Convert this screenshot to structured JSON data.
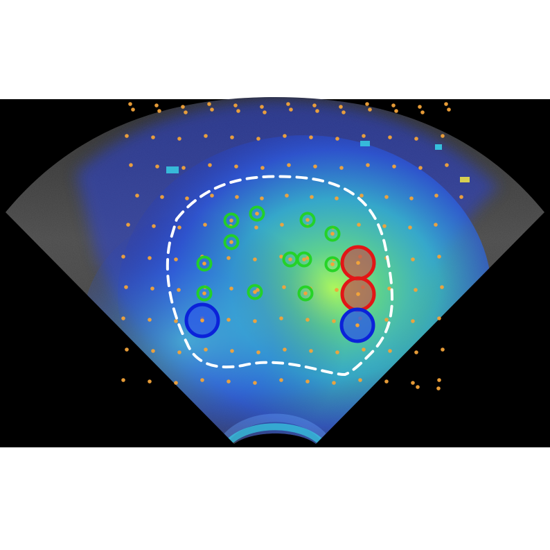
{
  "image": {
    "kind": "ultrasound-overlay",
    "colors": {
      "background": "#000000",
      "tissue_gray": "#4b4b4b",
      "heat_blue": "#2d3fd0",
      "heat_cyan": "#37c7e0",
      "heat_green": "#a9f25a",
      "grid_dot": "#f2a33a",
      "green_marker": "#22d322",
      "red_marker": "#e21616",
      "blue_marker": "#0b22d9",
      "boundary": "#ffffff"
    }
  },
  "overlay": {
    "grid_points": {
      "count": 240,
      "note": ""
    },
    "markers": {
      "green_rings": [
        {
          "id": "g1"
        },
        {
          "id": "g2"
        },
        {
          "id": "g3"
        },
        {
          "id": "g4"
        },
        {
          "id": "g5"
        },
        {
          "id": "g6"
        },
        {
          "id": "g7"
        },
        {
          "id": "g8"
        },
        {
          "id": "g9"
        },
        {
          "id": "g10"
        },
        {
          "id": "g11"
        },
        {
          "id": "g12"
        }
      ],
      "red_circles": [
        {
          "id": "r1"
        },
        {
          "id": "r2"
        }
      ],
      "blue_circles": [
        {
          "id": "b1"
        },
        {
          "id": "b2"
        }
      ]
    },
    "boundary": {
      "style": "dashed"
    }
  }
}
